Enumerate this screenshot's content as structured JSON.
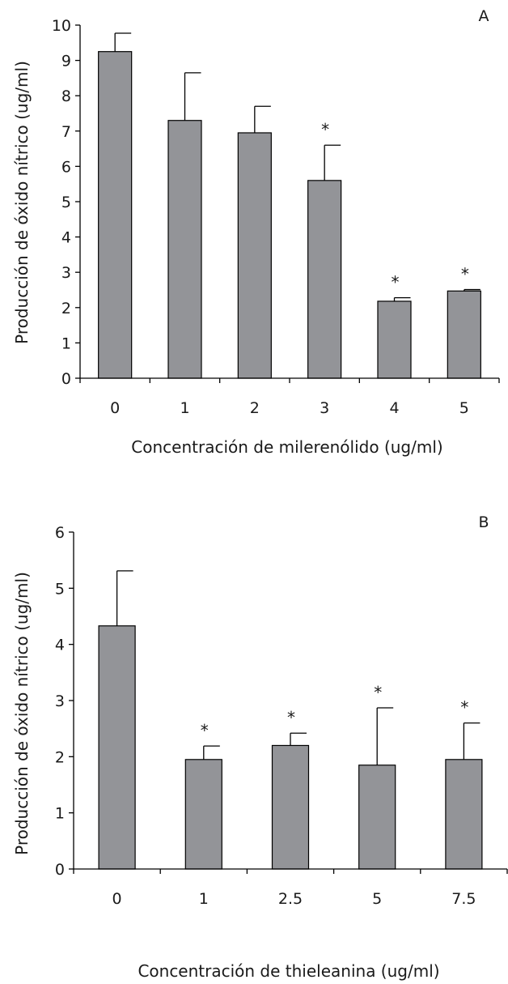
{
  "chart_data": [
    {
      "type": "bar",
      "panel_label": "A",
      "categories": [
        "0",
        "1",
        "2",
        "3",
        "4",
        "5"
      ],
      "values": [
        9.25,
        7.3,
        6.95,
        5.6,
        2.18,
        2.47
      ],
      "errors": [
        0.52,
        1.35,
        0.75,
        1.0,
        0.1,
        0.04
      ],
      "significant": [
        "",
        "",
        "",
        "*",
        "*",
        "*"
      ],
      "xlabel": "Concentración de milerenólido (ug/ml)",
      "ylabel": "Producción de óxido nítrico (ug/ml)",
      "ylim": [
        0,
        10
      ],
      "yticks": [
        "0",
        "1",
        "2",
        "3",
        "4",
        "5",
        "6",
        "7",
        "8",
        "9",
        "10"
      ],
      "grid": false
    },
    {
      "type": "bar",
      "panel_label": "B",
      "categories": [
        "0",
        "1",
        "2.5",
        "5",
        "7.5"
      ],
      "values": [
        4.33,
        1.95,
        2.2,
        1.85,
        1.95
      ],
      "errors": [
        0.98,
        0.24,
        0.22,
        1.02,
        0.65
      ],
      "significant": [
        "",
        "*",
        "*",
        "*",
        "*"
      ],
      "xlabel": "Concentración de thieleanina (ug/ml)",
      "ylabel": "Producción de óxido nítrico (ug/ml)",
      "ylim": [
        0,
        6
      ],
      "yticks": [
        "0",
        "1",
        "2",
        "3",
        "4",
        "5",
        "6"
      ],
      "grid": false
    }
  ]
}
